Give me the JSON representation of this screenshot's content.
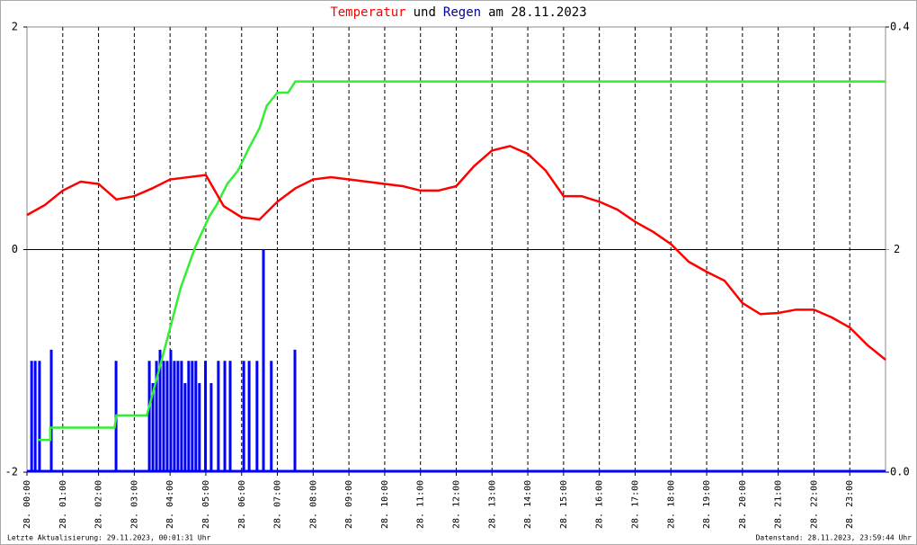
{
  "chart_data": {
    "type": "line",
    "title": [
      "Temperatur",
      "und",
      "Regen",
      "am 28.11.2023"
    ],
    "xlim": [
      0,
      24
    ],
    "xticks": [
      {
        "value": 0,
        "label": "28. 00:00"
      },
      {
        "value": 1,
        "label": "28. 01:00"
      },
      {
        "value": 2,
        "label": "28. 02:00"
      },
      {
        "value": 3,
        "label": "28. 03:00"
      },
      {
        "value": 4,
        "label": "28. 04:00"
      },
      {
        "value": 5,
        "label": "28. 05:00"
      },
      {
        "value": 6,
        "label": "28. 06:00"
      },
      {
        "value": 7,
        "label": "28. 07:00"
      },
      {
        "value": 8,
        "label": "28. 08:00"
      },
      {
        "value": 9,
        "label": "28. 09:00"
      },
      {
        "value": 10,
        "label": "28. 10:00"
      },
      {
        "value": 11,
        "label": "28. 11:00"
      },
      {
        "value": 12,
        "label": "28. 12:00"
      },
      {
        "value": 13,
        "label": "28. 13:00"
      },
      {
        "value": 14,
        "label": "28. 14:00"
      },
      {
        "value": 15,
        "label": "28. 15:00"
      },
      {
        "value": 16,
        "label": "28. 16:00"
      },
      {
        "value": 17,
        "label": "28. 17:00"
      },
      {
        "value": 18,
        "label": "28. 18:00"
      },
      {
        "value": 19,
        "label": "28. 19:00"
      },
      {
        "value": 20,
        "label": "28. 20:00"
      },
      {
        "value": 21,
        "label": "28. 21:00"
      },
      {
        "value": 22,
        "label": "28. 22:00"
      },
      {
        "value": 23,
        "label": "28. 23:00"
      }
    ],
    "ylim": [
      -2,
      2
    ],
    "yticks": [
      -2,
      0,
      2
    ],
    "y2lim": [
      0,
      0.4
    ],
    "y2ticks": [
      {
        "value": 0,
        "label": "0.0"
      },
      {
        "value": 0.4,
        "label": "0.4"
      }
    ],
    "y3lim": [
      0,
      4
    ],
    "y3ticks": [
      2
    ],
    "y3color": "#33ee33",
    "grid": true,
    "series": [
      {
        "color": "#ff0000",
        "type": "line",
        "x": [
          0,
          0.5,
          1,
          1.5,
          2,
          2.5,
          3,
          3.5,
          4,
          4.5,
          5,
          5.5,
          6,
          6.5,
          7,
          7.5,
          8,
          8.5,
          9,
          9.5,
          10,
          10.5,
          11,
          11.5,
          12,
          12.5,
          13,
          13.5,
          14,
          14.5,
          15,
          15.5,
          16,
          16.5,
          17,
          17.5,
          18,
          18.5,
          19,
          19.5,
          20,
          20.5,
          21,
          21.5,
          22,
          22.5,
          23,
          23.5,
          24
        ],
        "values": [
          0.31,
          0.4,
          0.53,
          0.61,
          0.59,
          0.45,
          0.48,
          0.55,
          0.63,
          0.65,
          0.67,
          0.39,
          0.29,
          0.27,
          0.43,
          0.55,
          0.63,
          0.65,
          0.63,
          0.61,
          0.59,
          0.57,
          0.53,
          0.53,
          0.57,
          0.75,
          0.89,
          0.93,
          0.86,
          0.71,
          0.48,
          0.48,
          0.43,
          0.36,
          0.25,
          0.16,
          0.05,
          -0.11,
          -0.2,
          -0.28,
          -0.48,
          -0.58,
          -0.57,
          -0.54,
          -0.54,
          -0.61,
          -0.7,
          -0.86,
          -0.99
        ]
      },
      {
        "color": "#0000ff",
        "type": "bar",
        "axis": "y2",
        "x": [
          0.13,
          0.23,
          0.35,
          0.68,
          2.49,
          3.42,
          3.52,
          3.62,
          3.72,
          3.82,
          3.92,
          4.02,
          4.12,
          4.22,
          4.32,
          4.42,
          4.52,
          4.62,
          4.72,
          4.82,
          4.99,
          5.15,
          5.35,
          5.53,
          5.68,
          6.06,
          6.21,
          6.43,
          6.61,
          6.83,
          7.49
        ],
        "values": [
          0.1,
          0.1,
          0.1,
          0.11,
          0.1,
          0.1,
          0.08,
          0.1,
          0.11,
          0.1,
          0.1,
          0.11,
          0.1,
          0.1,
          0.1,
          0.08,
          0.1,
          0.1,
          0.1,
          0.08,
          0.1,
          0.08,
          0.1,
          0.1,
          0.1,
          0.1,
          0.1,
          0.1,
          0.2,
          0.1,
          0.11
        ]
      },
      {
        "color": "#33ee33",
        "type": "step",
        "axis": "y3",
        "x": [
          0.3,
          0.65,
          0.65,
          2.45,
          2.5,
          3.35,
          3.8,
          4.3,
          4.7,
          5.1,
          5.3,
          5.6,
          5.9,
          6.2,
          6.5,
          6.7,
          7.0,
          7.3,
          7.5,
          24
        ],
        "values": [
          0.29,
          0.29,
          0.4,
          0.4,
          0.51,
          0.51,
          1.05,
          1.66,
          2.02,
          2.3,
          2.4,
          2.59,
          2.71,
          2.91,
          3.09,
          3.29,
          3.41,
          3.41,
          3.51,
          3.51
        ]
      }
    ]
  },
  "footer": {
    "left": "Letzte Aktualisierung: 29.11.2023, 00:01:31 Uhr",
    "right": "Datenstand: 28.11.2023, 23:59:44 Uhr"
  }
}
